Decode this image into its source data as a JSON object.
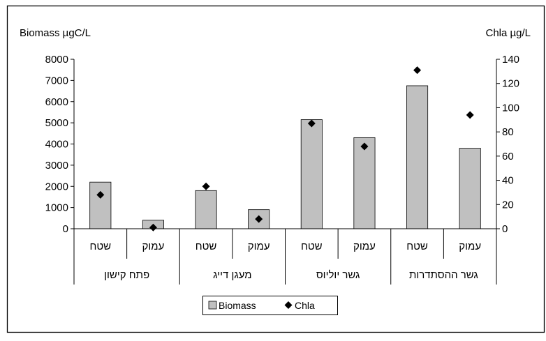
{
  "chart_data": {
    "type": "bar",
    "y_left_label": "Biomass µgC/L",
    "y_right_label": "Chla µg/L",
    "y_left_ticks": [
      "0",
      "1000",
      "2000",
      "3000",
      "4000",
      "5000",
      "6000",
      "7000",
      "8000"
    ],
    "y_right_ticks": [
      "0",
      "20",
      "40",
      "60",
      "80",
      "100",
      "120",
      "140"
    ],
    "ylim_left": [
      0,
      8000
    ],
    "ylim_right": [
      0,
      140
    ],
    "categories": [
      "שטח",
      "עמוק",
      "שטח",
      "עמוק",
      "שטח",
      "עמוק",
      "שטח",
      "עמוק"
    ],
    "groups": [
      "פתח קישון",
      "מעגן דייג",
      "גשר יוליוס",
      "גשר ההסתדרות"
    ],
    "series": [
      {
        "name": "Biomass",
        "type": "bar",
        "axis": "left",
        "color": "#c0c0c0",
        "values": [
          2200,
          400,
          1800,
          900,
          5150,
          4300,
          6750,
          3800
        ]
      },
      {
        "name": "Chla",
        "type": "scatter",
        "axis": "right",
        "marker": "diamond",
        "color": "#000000",
        "values": [
          28,
          1,
          35,
          8,
          87,
          68,
          131,
          94
        ]
      }
    ],
    "legend": {
      "position": "bottom",
      "items": [
        "Biomass",
        "Chla"
      ]
    }
  }
}
